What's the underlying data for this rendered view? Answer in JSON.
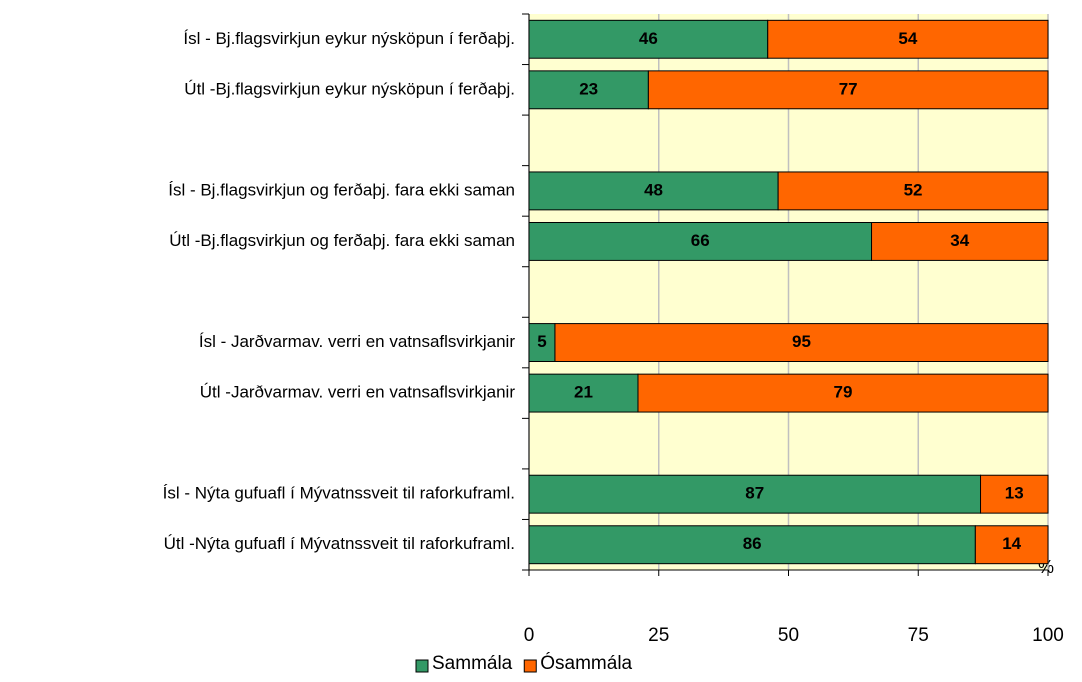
{
  "chart_data": {
    "type": "stacked_bar_horizontal",
    "categories": [
      "Ísl - Bj.flagsvirkjun eykur nýsköpun í ferðaþj.",
      "Útl -Bj.flagsvirkjun eykur nýsköpun í ferðaþj.",
      null,
      "Ísl - Bj.flagsvirkjun og ferðaþj. fara ekki saman",
      "Útl -Bj.flagsvirkjun og ferðaþj. fara ekki saman",
      null,
      "Ísl - Jarðvarmav. verri en vatnsaflsvirkjanir",
      "Útl -Jarðvarmav. verri en vatnsaflsvirkjanir",
      null,
      "Ísl - Nýta gufuafl í Mývatnssveit til raforkuframl.",
      "Útl -Nýta gufuafl í Mývatnssveit til raforkuframl."
    ],
    "series": [
      {
        "name": "Sammála",
        "color": "#339966",
        "values": [
          46,
          23,
          null,
          48,
          66,
          null,
          5,
          21,
          null,
          87,
          86
        ]
      },
      {
        "name": "Ósammála",
        "color": "#ff6600",
        "values": [
          54,
          77,
          null,
          52,
          34,
          null,
          95,
          79,
          null,
          13,
          14
        ]
      }
    ],
    "x_label": "%",
    "xlim": [
      0,
      100
    ],
    "xticks": [
      0,
      25,
      50,
      75,
      100
    ],
    "grid": true,
    "legend": "bottom",
    "plot_background": "#ffffd0"
  }
}
